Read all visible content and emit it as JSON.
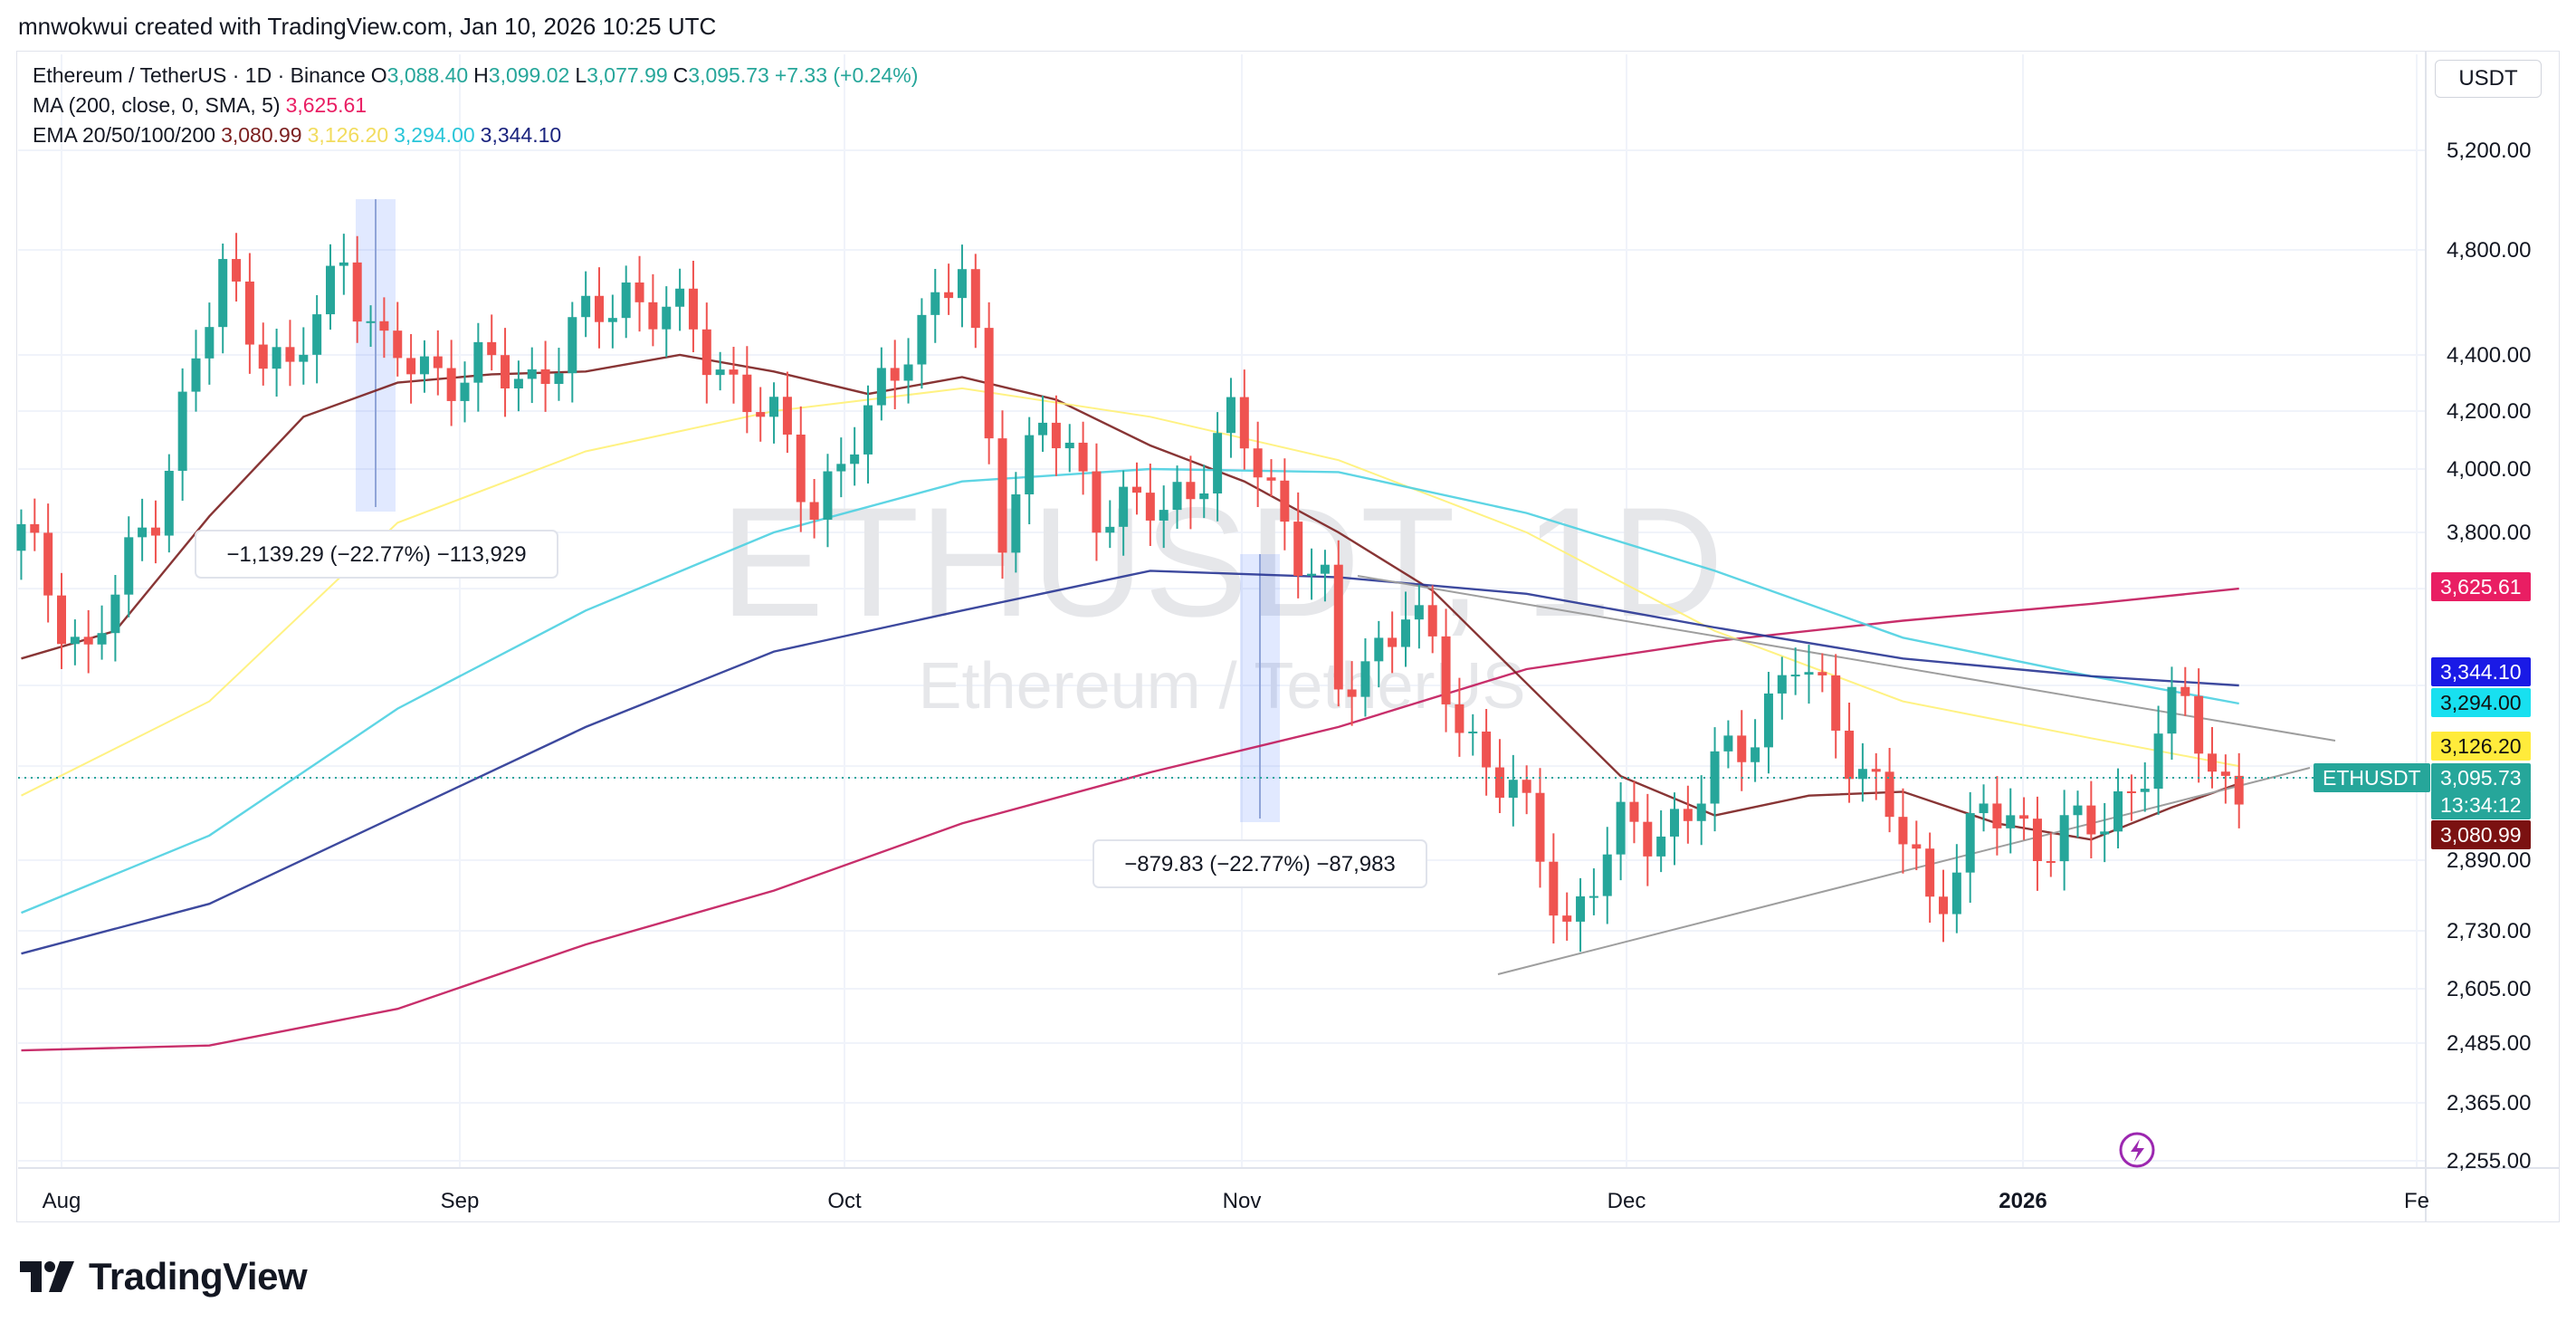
{
  "header": {
    "text": "mnwokwui created with TradingView.com, Jan 10, 2026 10:25 UTC"
  },
  "legend": {
    "symbol": "Ethereum / TetherUS · 1D · Binance",
    "o_label": "O",
    "o_value": "3,088.40",
    "h_label": "H",
    "h_value": "3,099.02",
    "l_label": "L",
    "l_value": "3,077.99",
    "c_label": "C",
    "c_value": "3,095.73",
    "change": "+7.33 (+0.24%)",
    "ma_label": "MA (200, close, 0, SMA, 5)",
    "ma_value": "3,625.61",
    "ema_label": "EMA 20/50/100/200",
    "ema20": "3,080.99",
    "ema50": "3,126.20",
    "ema100": "3,294.00",
    "ema200": "3,344.10"
  },
  "watermark": {
    "symbol": "ETHUSDT, 1D",
    "name": "Ethereum / TetherUS"
  },
  "currency": "USDT",
  "price_tags": {
    "ma200": "3,625.61",
    "ema200": "3,344.10",
    "ema100": "3,294.00",
    "ema50": "3,126.20",
    "symbol_label": "ETHUSDT",
    "last": "3,095.73",
    "countdown": "13:34:12",
    "ema20": "3,080.99"
  },
  "measurements": [
    {
      "text": "−1,139.29 (−22.77%) −113,929"
    },
    {
      "text": "−879.83 (−22.77%) −87,983"
    }
  ],
  "branding": {
    "name": "TradingView"
  },
  "colors": {
    "up": "#26a69a",
    "down": "#ef5350",
    "ma200": "#c2185b",
    "ema20": "#7b1f1f",
    "ema50": "#fff176",
    "ema100": "#4dd0e1",
    "ema200": "#283593"
  },
  "chart_data": {
    "type": "line",
    "title": "Ethereum / TetherUS · 1D · Binance",
    "x_ticks": [
      "Aug",
      "Sep",
      "Oct",
      "Nov",
      "Dec",
      "2026",
      "Fe"
    ],
    "y_ticks": [
      "5,200.00",
      "4,800.00",
      "4,400.00",
      "4,200.00",
      "4,000.00",
      "3,800.00",
      "2,890.00",
      "2,730.00",
      "2,605.00",
      "2,485.00",
      "2,365.00",
      "2,255.00"
    ],
    "scale": "log",
    "ylim": [
      2220,
      5600
    ],
    "grid": true,
    "series": [
      {
        "name": "MA (200, close, 0, SMA, 5)",
        "points": [
          [
            "Jul 29",
            2470
          ],
          [
            "Aug 12",
            2480
          ],
          [
            "Aug 26",
            2560
          ],
          [
            "Sep 9",
            2700
          ],
          [
            "Sep 23",
            2820
          ],
          [
            "Oct 7",
            2980
          ],
          [
            "Oct 21",
            3110
          ],
          [
            "Nov 4",
            3230
          ],
          [
            "Nov 18",
            3390
          ],
          [
            "Dec 2",
            3470
          ],
          [
            "Dec 16",
            3530
          ],
          [
            "Dec 30",
            3580
          ],
          [
            "Jan 10",
            3625.61
          ]
        ]
      },
      {
        "name": "EMA 20",
        "points": [
          [
            "Jul 29",
            3420
          ],
          [
            "Aug 5",
            3500
          ],
          [
            "Aug 12",
            3850
          ],
          [
            "Aug 19",
            4180
          ],
          [
            "Aug 26",
            4300
          ],
          [
            "Sep 2",
            4330
          ],
          [
            "Sep 9",
            4340
          ],
          [
            "Sep 16",
            4400
          ],
          [
            "Sep 23",
            4340
          ],
          [
            "Sep 30",
            4260
          ],
          [
            "Oct 7",
            4320
          ],
          [
            "Oct 14",
            4240
          ],
          [
            "Oct 21",
            4080
          ],
          [
            "Oct 28",
            3960
          ],
          [
            "Nov 4",
            3800
          ],
          [
            "Nov 11",
            3620
          ],
          [
            "Nov 18",
            3350
          ],
          [
            "Nov 25",
            3100
          ],
          [
            "Dec 2",
            3000
          ],
          [
            "Dec 9",
            3050
          ],
          [
            "Dec 16",
            3060
          ],
          [
            "Dec 23",
            2980
          ],
          [
            "Dec 30",
            2940
          ],
          [
            "Jan 5",
            3020
          ],
          [
            "Jan 10",
            3080.99
          ]
        ]
      },
      {
        "name": "EMA 50",
        "points": [
          [
            "Jul 29",
            3050
          ],
          [
            "Aug 12",
            3300
          ],
          [
            "Aug 26",
            3830
          ],
          [
            "Sep 9",
            4060
          ],
          [
            "Sep 23",
            4200
          ],
          [
            "Oct 7",
            4280
          ],
          [
            "Oct 21",
            4180
          ],
          [
            "Nov 4",
            4030
          ],
          [
            "Nov 18",
            3800
          ],
          [
            "Dec 2",
            3500
          ],
          [
            "Dec 16",
            3300
          ],
          [
            "Dec 30",
            3200
          ],
          [
            "Jan 10",
            3126.2
          ]
        ]
      },
      {
        "name": "EMA 100",
        "points": [
          [
            "Jul 29",
            2770
          ],
          [
            "Aug 12",
            2950
          ],
          [
            "Aug 26",
            3280
          ],
          [
            "Sep 9",
            3560
          ],
          [
            "Sep 23",
            3800
          ],
          [
            "Oct 7",
            3960
          ],
          [
            "Oct 21",
            4000
          ],
          [
            "Nov 4",
            3990
          ],
          [
            "Nov 18",
            3860
          ],
          [
            "Dec 2",
            3680
          ],
          [
            "Dec 16",
            3480
          ],
          [
            "Dec 30",
            3370
          ],
          [
            "Jan 10",
            3294.0
          ]
        ]
      },
      {
        "name": "EMA 200",
        "points": [
          [
            "Jul 29",
            2680
          ],
          [
            "Aug 12",
            2790
          ],
          [
            "Aug 26",
            3000
          ],
          [
            "Sep 9",
            3230
          ],
          [
            "Sep 23",
            3440
          ],
          [
            "Oct 7",
            3560
          ],
          [
            "Oct 21",
            3680
          ],
          [
            "Nov 4",
            3660
          ],
          [
            "Nov 18",
            3610
          ],
          [
            "Dec 2",
            3510
          ],
          [
            "Dec 16",
            3420
          ],
          [
            "Dec 30",
            3370
          ],
          [
            "Jan 10",
            3344.1
          ]
        ]
      },
      {
        "name": "ETHUSDT close",
        "points": [
          [
            "Jul 29",
            3780
          ],
          [
            "Aug 3",
            3420
          ],
          [
            "Aug 8",
            3900
          ],
          [
            "Aug 13",
            4700
          ],
          [
            "Aug 18",
            4300
          ],
          [
            "Aug 22",
            4800
          ],
          [
            "Aug 25",
            4380
          ],
          [
            "Aug 29",
            4350
          ],
          [
            "Sep 5",
            4320
          ],
          [
            "Sep 12",
            4650
          ],
          [
            "Sep 17",
            4480
          ],
          [
            "Sep 23",
            4140
          ],
          [
            "Sep 26",
            3900
          ],
          [
            "Sep 30",
            4150
          ],
          [
            "Oct 3",
            4480
          ],
          [
            "Oct 7",
            4700
          ],
          [
            "Oct 10",
            3850
          ],
          [
            "Oct 13",
            4150
          ],
          [
            "Oct 17",
            3900
          ],
          [
            "Oct 22",
            3850
          ],
          [
            "Oct 27",
            4150
          ],
          [
            "Oct 31",
            3850
          ],
          [
            "Nov 3",
            3600
          ],
          [
            "Nov 4",
            3300
          ],
          [
            "Nov 9",
            3580
          ],
          [
            "Nov 13",
            3250
          ],
          [
            "Nov 17",
            3050
          ],
          [
            "Nov 21",
            2750
          ],
          [
            "Nov 25",
            2950
          ],
          [
            "Nov 30",
            3000
          ],
          [
            "Dec 3",
            3150
          ],
          [
            "Dec 8",
            3400
          ],
          [
            "Dec 11",
            3250
          ],
          [
            "Dec 15",
            3000
          ],
          [
            "Dec 18",
            2800
          ],
          [
            "Dec 22",
            3000
          ],
          [
            "Dec 26",
            2950
          ],
          [
            "Dec 31",
            2970
          ],
          [
            "Jan 3",
            3150
          ],
          [
            "Jan 6",
            3300
          ],
          [
            "Jan 8",
            3100
          ],
          [
            "Jan 10",
            3095.73
          ]
        ]
      }
    ],
    "current_price": 3095.73,
    "annotations": [
      "ETHUSDT",
      "−1,139.29 (−22.77%) −113,929",
      "−879.83 (−22.77%) −87,983"
    ]
  }
}
